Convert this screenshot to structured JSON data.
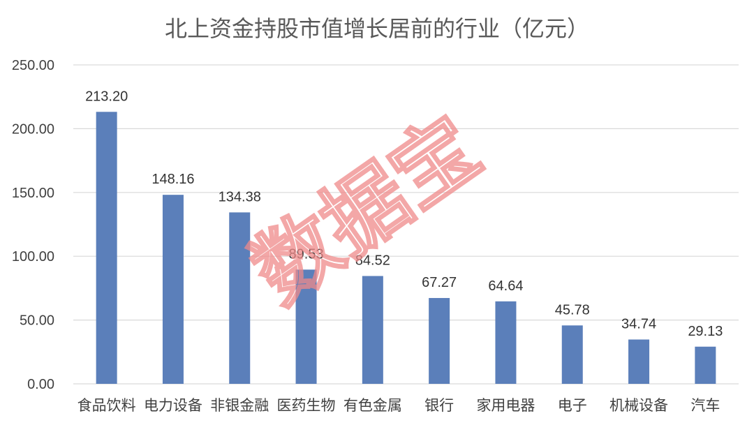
{
  "chart_data": {
    "type": "bar",
    "title": "北上资金持股市值增长居前的行业（亿元）",
    "categories": [
      "食品饮料",
      "电力设备",
      "非银金融",
      "医药生物",
      "有色金属",
      "银行",
      "家用电器",
      "电子",
      "机械设备",
      "汽车"
    ],
    "values": [
      213.2,
      148.16,
      134.38,
      89.53,
      84.52,
      67.27,
      64.64,
      45.78,
      34.74,
      29.13
    ],
    "data_labels": [
      "213.20",
      "148.16",
      "134.38",
      "89.53",
      "84.52",
      "67.27",
      "64.64",
      "45.78",
      "34.74",
      "29.13"
    ],
    "y_ticks": [
      "0.00",
      "50.00",
      "100.00",
      "150.00",
      "200.00",
      "250.00"
    ],
    "ylim": [
      0,
      250
    ],
    "xlabel": "",
    "ylabel": "",
    "grid": true,
    "legend": "none",
    "bar_color": "#5b7fba",
    "grid_color": "#d9d9d9"
  },
  "watermark": {
    "text": "数据宝",
    "color": "#ef8a8a"
  }
}
